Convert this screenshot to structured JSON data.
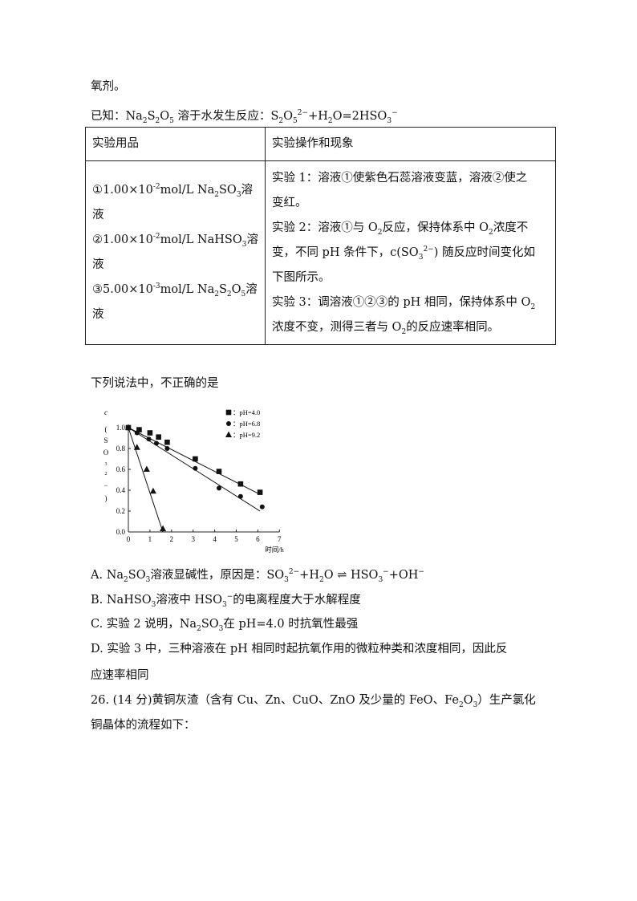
{
  "lines": {
    "intro": [
      {
        "t": "氧剂。"
      }
    ],
    "known": [
      {
        "t": "已知：Na"
      },
      {
        "t": "2",
        "sub": 1
      },
      {
        "t": "S"
      },
      {
        "t": "2",
        "sub": 1
      },
      {
        "t": "O"
      },
      {
        "t": "5",
        "sub": 1
      },
      {
        "t": " 溶于水发生反应：S"
      },
      {
        "t": "2",
        "sub": 1
      },
      {
        "t": "O"
      },
      {
        "t": "5",
        "sub": 1
      },
      {
        "t": "2−",
        "sup": 1
      },
      {
        "t": "+H"
      },
      {
        "t": "2",
        "sub": 1
      },
      {
        "t": "O=2HSO"
      },
      {
        "t": "3",
        "sub": 1
      },
      {
        "t": "−",
        "sup": 1
      }
    ],
    "question": [
      {
        "t": "下列说法中，不正确的是"
      }
    ],
    "optA": [
      {
        "t": "A. Na"
      },
      {
        "t": "2",
        "sub": 1
      },
      {
        "t": "SO"
      },
      {
        "t": "3",
        "sub": 1
      },
      {
        "t": "溶液显碱性，原因是：SO"
      },
      {
        "t": "3",
        "sub": 1
      },
      {
        "t": "2−",
        "sup": 1
      },
      {
        "t": "+H"
      },
      {
        "t": "2",
        "sub": 1
      },
      {
        "t": "O ⇌ HSO"
      },
      {
        "t": "3",
        "sub": 1
      },
      {
        "t": "−",
        "sup": 1
      },
      {
        "t": "+OH"
      },
      {
        "t": "−",
        "sup": 1
      }
    ],
    "optB": [
      {
        "t": "B. NaHSO"
      },
      {
        "t": "3",
        "sub": 1
      },
      {
        "t": "溶液中 HSO"
      },
      {
        "t": "3",
        "sub": 1
      },
      {
        "t": "−",
        "sup": 1
      },
      {
        "t": "的电离程度大于水解程度"
      }
    ],
    "optC": [
      {
        "t": "C. 实验 2 说明，Na"
      },
      {
        "t": "2",
        "sub": 1
      },
      {
        "t": "SO"
      },
      {
        "t": "3",
        "sub": 1
      },
      {
        "t": "在 pH=4.0 时抗氧性最强"
      }
    ],
    "optD1": [
      {
        "t": "D. 实验 3 中，三种溶液在 pH 相同时起抗氧作用的微粒种类和浓度相同，因此反"
      }
    ],
    "optD2": [
      {
        "t": "应速率相同"
      }
    ],
    "q26a": [
      {
        "t": "26. (14 分)黄铜灰渣（含有 Cu、Zn、CuO、ZnO 及少量的 FeO、Fe"
      },
      {
        "t": "2",
        "sub": 1
      },
      {
        "t": "O"
      },
      {
        "t": "3",
        "sub": 1
      },
      {
        "t": "）生产氯化"
      }
    ],
    "q26b": [
      {
        "t": "铜晶体的流程如下："
      }
    ]
  },
  "table": {
    "headers": [
      "实验用品",
      "实验操作和现象"
    ],
    "col1": [
      [
        {
          "t": "①1.00×10"
        },
        {
          "t": "-2",
          "sup": 1
        },
        {
          "t": "mol/L  Na"
        },
        {
          "t": "2",
          "sub": 1
        },
        {
          "t": "SO"
        },
        {
          "t": "3",
          "sub": 1
        },
        {
          "t": "溶"
        }
      ],
      [
        {
          "t": "液"
        }
      ],
      [
        {
          "t": "②1.00×10"
        },
        {
          "t": "-2",
          "sup": 1
        },
        {
          "t": "mol/L  NaHSO"
        },
        {
          "t": "3",
          "sub": 1
        },
        {
          "t": "溶"
        }
      ],
      [
        {
          "t": "液"
        }
      ],
      [
        {
          "t": "③5.00×10"
        },
        {
          "t": "-3",
          "sup": 1
        },
        {
          "t": "mol/L  Na"
        },
        {
          "t": "2",
          "sub": 1
        },
        {
          "t": "S"
        },
        {
          "t": "2",
          "sub": 1
        },
        {
          "t": "O"
        },
        {
          "t": "5",
          "sub": 1
        },
        {
          "t": "溶"
        }
      ],
      [
        {
          "t": "液"
        }
      ]
    ],
    "col2": [
      [
        {
          "t": "实验 1：溶液①使紫色石蕊溶液变蓝，溶液②使之"
        }
      ],
      [
        {
          "t": "变红。"
        }
      ],
      [
        {
          "t": "实验 2：溶液①与 O"
        },
        {
          "t": "2",
          "sub": 1
        },
        {
          "t": "反应，保持体系中 O"
        },
        {
          "t": "2",
          "sub": 1
        },
        {
          "t": "浓度不"
        }
      ],
      [
        {
          "t": "变，不同 pH 条件下，c(SO"
        },
        {
          "t": "3",
          "sub": 1
        },
        {
          "t": "2−",
          "sup": 1
        },
        {
          "t": ") 随反应时间变化如"
        }
      ],
      [
        {
          "t": "下图所示。"
        }
      ],
      [
        {
          "t": "实验 3：调溶液①②③的 pH 相同，保持体系中 O"
        },
        {
          "t": "2",
          "sub": 1
        }
      ],
      [
        {
          "t": "浓度不变，测得三者与 O"
        },
        {
          "t": "2",
          "sub": 1
        },
        {
          "t": "的反应速率相同。"
        }
      ]
    ]
  },
  "chart_data": {
    "type": "scatter",
    "ylabel_chars": [
      "c",
      "(",
      "S",
      "O",
      "3",
      "2",
      "−",
      ")"
    ],
    "xlabel": "时间/h",
    "xlim": [
      0,
      7
    ],
    "ylim": [
      0,
      1.0
    ],
    "xticks": [
      "0",
      "1",
      "2",
      "3",
      "4",
      "5",
      "6",
      "7"
    ],
    "yticks": [
      "0.0",
      "0.2",
      "0.4",
      "0.6",
      "0.8",
      "1.0"
    ],
    "grid": false,
    "legend_position": "top-right",
    "series": [
      {
        "name": "：pH=4.0",
        "marker": "square",
        "x": [
          0,
          0.5,
          1.0,
          1.4,
          1.8,
          3.1,
          4.2,
          5.2,
          6.1
        ],
        "y": [
          1.0,
          0.98,
          0.95,
          0.91,
          0.86,
          0.7,
          0.58,
          0.46,
          0.38
        ],
        "fit": [
          [
            0,
            1.0
          ],
          [
            6.1,
            0.36
          ]
        ]
      },
      {
        "name": "：pH=6.8",
        "marker": "circle",
        "x": [
          0,
          0.4,
          0.95,
          1.3,
          1.8,
          3.1,
          4.2,
          5.2,
          6.2
        ],
        "y": [
          1.0,
          0.95,
          0.89,
          0.85,
          0.8,
          0.61,
          0.42,
          0.34,
          0.24
        ],
        "fit": [
          [
            0,
            1.0
          ],
          [
            6.1,
            0.2
          ]
        ]
      },
      {
        "name": "：pH=9.2",
        "marker": "triangle",
        "x": [
          0,
          0.4,
          0.85,
          1.15,
          1.6
        ],
        "y": [
          1.0,
          0.81,
          0.6,
          0.39,
          0.03
        ],
        "fit": [
          [
            0,
            1.0
          ],
          [
            1.6,
            0.0
          ]
        ]
      }
    ]
  }
}
